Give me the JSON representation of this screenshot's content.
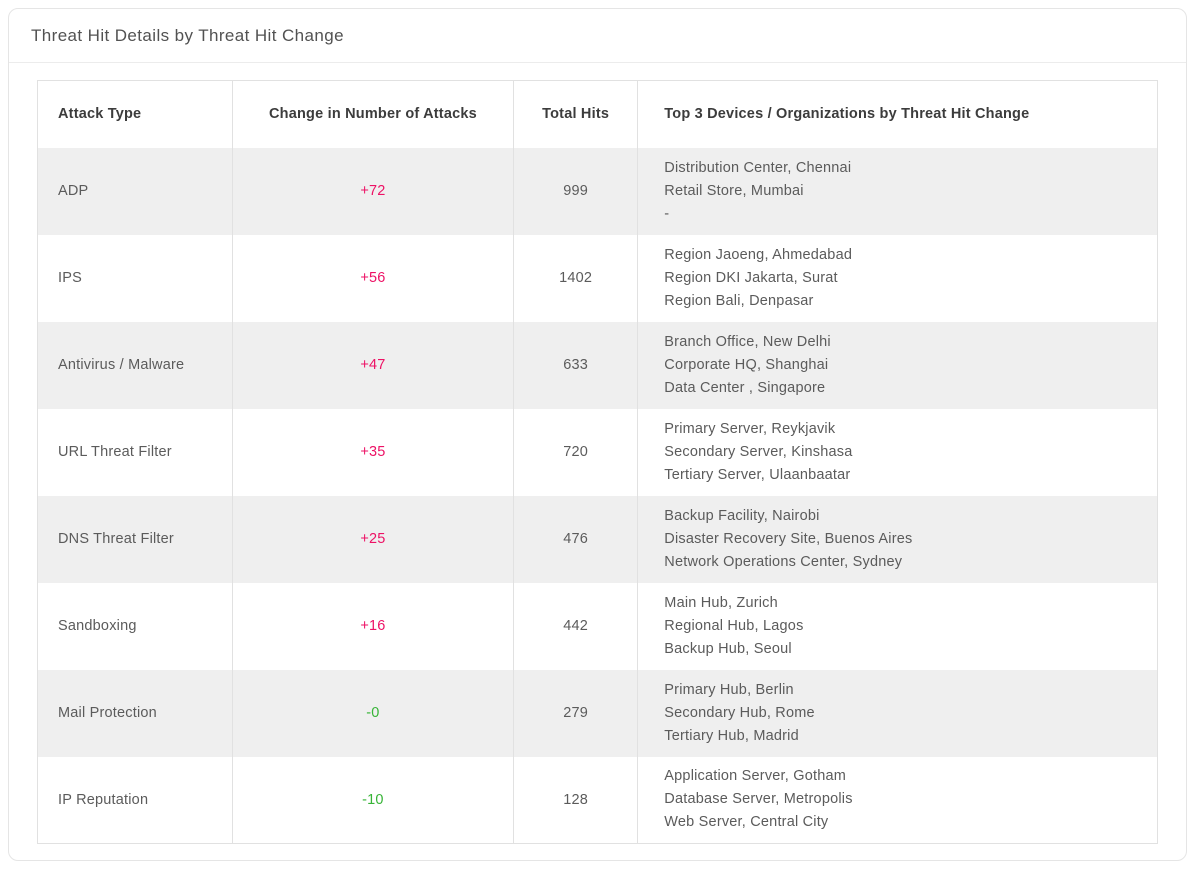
{
  "widget": {
    "title": "Threat Hit Details by Threat Hit Change"
  },
  "colors": {
    "increase": "#ed1265",
    "decrease": "#37b437"
  },
  "table": {
    "headers": [
      "Attack Type",
      "Change in Number of Attacks",
      "Total Hits",
      "Top 3 Devices / Organizations by Threat Hit Change"
    ],
    "rows": [
      {
        "attack_type": "ADP",
        "change": "+72",
        "trend": "up",
        "total_hits": "999",
        "devices": [
          "Distribution Center, Chennai",
          "Retail Store, Mumbai",
          "-"
        ]
      },
      {
        "attack_type": "IPS",
        "change": "+56",
        "trend": "up",
        "total_hits": "1402",
        "devices": [
          "Region Jaoeng, Ahmedabad",
          "Region DKI Jakarta, Surat",
          "Region Bali, Denpasar"
        ]
      },
      {
        "attack_type": "Antivirus / Malware",
        "change": "+47",
        "trend": "up",
        "total_hits": "633",
        "devices": [
          "Branch Office, New Delhi",
          "Corporate HQ, Shanghai",
          "Data Center , Singapore"
        ]
      },
      {
        "attack_type": "URL Threat Filter",
        "change": "+35",
        "trend": "up",
        "total_hits": "720",
        "devices": [
          "Primary Server, Reykjavik",
          "Secondary Server, Kinshasa",
          "Tertiary Server, Ulaanbaatar"
        ]
      },
      {
        "attack_type": "DNS Threat Filter",
        "change": "+25",
        "trend": "up",
        "total_hits": "476",
        "devices": [
          "Backup Facility, Nairobi",
          "Disaster Recovery Site, Buenos Aires",
          "Network Operations Center, Sydney"
        ]
      },
      {
        "attack_type": "Sandboxing",
        "change": "+16",
        "trend": "up",
        "total_hits": "442",
        "devices": [
          "Main Hub, Zurich",
          "Regional Hub, Lagos",
          "Backup Hub, Seoul"
        ]
      },
      {
        "attack_type": "Mail Protection",
        "change": "-0",
        "trend": "down",
        "total_hits": "279",
        "devices": [
          "Primary Hub, Berlin",
          "Secondary Hub, Rome",
          "Tertiary Hub, Madrid"
        ]
      },
      {
        "attack_type": "IP Reputation",
        "change": "-10",
        "trend": "down",
        "total_hits": "128",
        "devices": [
          "Application Server, Gotham",
          "Database Server, Metropolis",
          "Web Server, Central City"
        ]
      }
    ]
  },
  "chart_data": {
    "type": "table",
    "title": "Threat Hit Details by Threat Hit Change",
    "columns": [
      "Attack Type",
      "Change in Number of Attacks",
      "Total Hits",
      "Top 3 Devices / Organizations by Threat Hit Change"
    ],
    "rows": [
      [
        "ADP",
        72,
        999,
        [
          "Distribution Center, Chennai",
          "Retail Store, Mumbai",
          "-"
        ]
      ],
      [
        "IPS",
        56,
        1402,
        [
          "Region Jaoeng, Ahmedabad",
          "Region DKI Jakarta, Surat",
          "Region Bali, Denpasar"
        ]
      ],
      [
        "Antivirus / Malware",
        47,
        633,
        [
          "Branch Office, New Delhi",
          "Corporate HQ, Shanghai",
          "Data Center , Singapore"
        ]
      ],
      [
        "URL Threat Filter",
        35,
        720,
        [
          "Primary Server, Reykjavik",
          "Secondary Server, Kinshasa",
          "Tertiary Server, Ulaanbaatar"
        ]
      ],
      [
        "DNS Threat Filter",
        25,
        476,
        [
          "Backup Facility, Nairobi",
          "Disaster Recovery Site, Buenos Aires",
          "Network Operations Center, Sydney"
        ]
      ],
      [
        "Sandboxing",
        16,
        442,
        [
          "Main Hub, Zurich",
          "Regional Hub, Lagos",
          "Backup Hub, Seoul"
        ]
      ],
      [
        "Mail Protection",
        0,
        279,
        [
          "Primary Hub, Berlin",
          "Secondary Hub, Rome",
          "Tertiary Hub, Madrid"
        ]
      ],
      [
        "IP Reputation",
        -10,
        128,
        [
          "Application Server, Gotham",
          "Database Server, Metropolis",
          "Web Server, Central City"
        ]
      ]
    ],
    "notes": "Positive changes rendered in pink #ed1265, negative changes in green #37b437; rows striped light gray #efefef starting with first data row."
  }
}
